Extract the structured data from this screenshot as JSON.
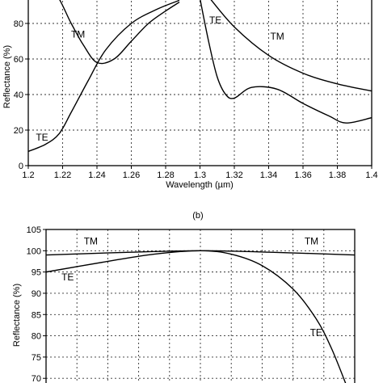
{
  "chart_data": [
    {
      "type": "line",
      "title": "",
      "xlabel": "Wavelength (µm)",
      "ylabel": "Reflectance (%)",
      "xlim": [
        1.2,
        1.4
      ],
      "ylim": [
        0,
        95
      ],
      "x_ticks": [
        "1.2",
        "1.22",
        "1.24",
        "1.26",
        "1.28",
        "1.3",
        "1.32",
        "1.34",
        "1.36",
        "1.38",
        "1.4"
      ],
      "y_ticks": [
        "0",
        "20",
        "40",
        "60",
        "80"
      ],
      "grid": true,
      "series": [
        {
          "name": "TM",
          "segments": [
            {
              "x": [
                1.2,
                1.215,
                1.225,
                1.232,
                1.24,
                1.25,
                1.26,
                1.27,
                1.28,
                1.288
              ],
              "y": [
                108,
                98,
                80,
                68,
                58,
                60,
                70,
                80,
                87,
                92
              ]
            },
            {
              "x": [
                1.305,
                1.32,
                1.34,
                1.36,
                1.38,
                1.4
              ],
              "y": [
                95,
                78,
                62,
                52,
                46,
                42
              ]
            }
          ]
        },
        {
          "name": "TE",
          "segments": [
            {
              "x": [
                1.2,
                1.21,
                1.218,
                1.225,
                1.235,
                1.245,
                1.26,
                1.275,
                1.288
              ],
              "y": [
                8,
                12,
                18,
                30,
                48,
                65,
                80,
                88,
                93
              ]
            },
            {
              "x": [
                1.3,
                1.305,
                1.31,
                1.315,
                1.32,
                1.33,
                1.345,
                1.36,
                1.375,
                1.385,
                1.4
              ],
              "y": [
                94,
                70,
                50,
                40,
                38,
                44,
                43,
                35,
                28,
                24,
                27
              ]
            }
          ]
        }
      ],
      "annotations": [
        {
          "text": "TM",
          "x": 1.229,
          "y": 72
        },
        {
          "text": "TE",
          "x": 1.309,
          "y": 80
        },
        {
          "text": "TM",
          "x": 1.345,
          "y": 71
        },
        {
          "text": "TE",
          "x": 1.208,
          "y": 14
        }
      ]
    },
    {
      "type": "line",
      "title": "(b)",
      "xlabel": "",
      "ylabel": "Reflectance (%)",
      "xlim": [
        1.2,
        1.4
      ],
      "ylim": [
        67,
        105
      ],
      "y_ticks": [
        "70",
        "75",
        "80",
        "85",
        "90",
        "95",
        "100",
        "105"
      ],
      "grid": true,
      "series": [
        {
          "name": "TM",
          "segments": [
            {
              "x": [
                1.2,
                1.25,
                1.3,
                1.35,
                1.4
              ],
              "y": [
                99,
                99.6,
                100,
                99.6,
                99
              ]
            }
          ]
        },
        {
          "name": "TE",
          "segments": [
            {
              "x": [
                1.2,
                1.24,
                1.27,
                1.3,
                1.32,
                1.34,
                1.36,
                1.375,
                1.385,
                1.395
              ],
              "y": [
                95,
                97.5,
                99.2,
                100,
                99.2,
                96.5,
                91,
                84,
                77,
                68
              ]
            }
          ]
        }
      ],
      "annotations": [
        {
          "text": "TM",
          "x": 1.229,
          "y": 101.5
        },
        {
          "text": "TM",
          "x": 1.372,
          "y": 101.5
        },
        {
          "text": "TE",
          "x": 1.214,
          "y": 93
        },
        {
          "text": "TE",
          "x": 1.375,
          "y": 80
        }
      ]
    }
  ]
}
